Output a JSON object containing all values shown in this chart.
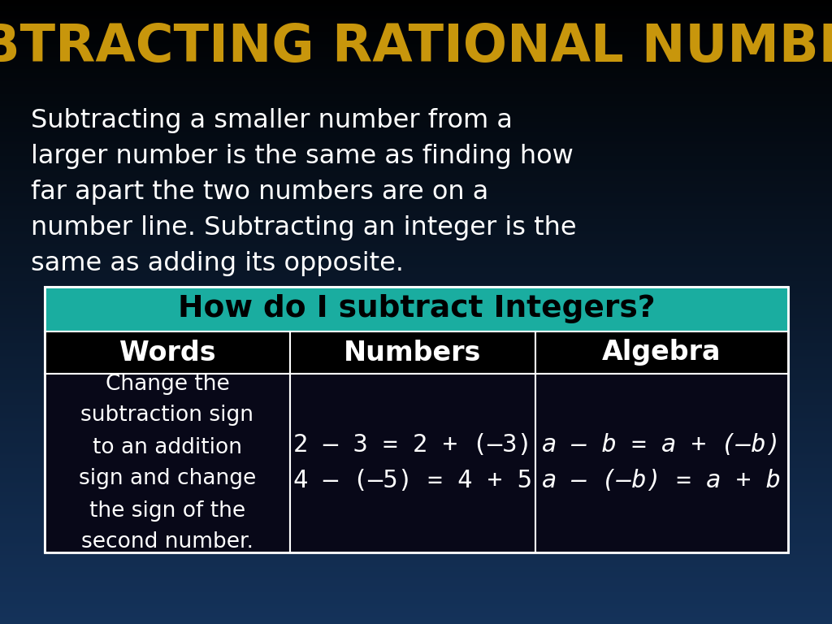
{
  "title": "SUBTRACTING RATIONAL NUMBERS",
  "title_color": "#C8960C",
  "background_top": "#000000",
  "background_bottom": "#1a3a5c",
  "body_lines": [
    "Subtracting a smaller number from a",
    "larger number is the same as finding how",
    "far apart the two numbers are on a",
    "number line. Subtracting an integer is the",
    "same as adding its opposite."
  ],
  "table_header_text": "How do I subtract Integers?",
  "table_header_bg": "#1aada0",
  "table_header_text_color": "#000000",
  "table_col_headers": [
    "Words",
    "Numbers",
    "Algebra"
  ],
  "words_cell": "Change the\nsubtraction sign\nto an addition\nsign and change\nthe sign of the\nsecond number.",
  "numbers_cell_line1": "2 – 3 = 2 + (–3)",
  "numbers_cell_line2": "4 – (–5) = 4 + 5",
  "algebra_cell_line1": "a – b = a + (–b)",
  "algebra_cell_line2": "a – (–b) = a + b",
  "cell_text_color": "#ffffff"
}
